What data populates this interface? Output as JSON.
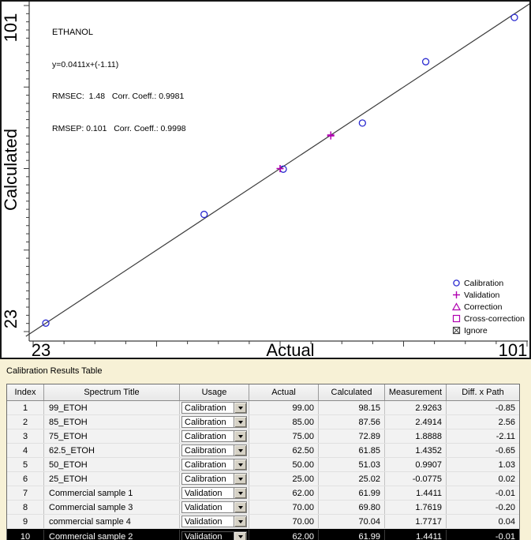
{
  "colors": {
    "panel_bg": "#f7f1d6",
    "plot_bg": "#ffffff",
    "axis": "#3c3c3c",
    "calibration": "#2a2ad0",
    "validation": "#b000b0",
    "ignore": "#444444",
    "selection_bg": "#000000",
    "selection_text": "#ffffff"
  },
  "plot": {
    "title": "ETHANOL",
    "equation": "y=0.0411x+(-1.11)",
    "stats_line1": "RMSEC:  1.48   Corr. Coeff.: 0.9981",
    "stats_line2": "RMSEP: 0.101   Corr. Coeff.: 0.9998",
    "x_axis_label": "Actual",
    "y_axis_label": "Calculated",
    "x_min_label": "23",
    "x_max_label": "101",
    "y_min_label": "23",
    "y_max_label": "101",
    "legend": [
      {
        "marker": "circle",
        "label": "Calibration",
        "color": "#2a2ad0"
      },
      {
        "marker": "plus",
        "label": "Validation",
        "color": "#b000b0"
      },
      {
        "marker": "triangle",
        "label": "Correction",
        "color": "#b000b0"
      },
      {
        "marker": "square",
        "label": "Cross-correction",
        "color": "#b000b0"
      },
      {
        "marker": "crossed-square",
        "label": "Ignore",
        "color": "#444444"
      }
    ]
  },
  "chart_data": {
    "type": "scatter",
    "title": "ETHANOL",
    "xlabel": "Actual",
    "ylabel": "Calculated",
    "xlim": [
      23,
      101
    ],
    "ylim": [
      23,
      101
    ],
    "grid": false,
    "legend_position": "lower right",
    "series": [
      {
        "name": "Calibration",
        "marker": "circle",
        "color": "#2a2ad0",
        "points": [
          [
            99,
            98.15
          ],
          [
            85,
            87.56
          ],
          [
            75,
            72.89
          ],
          [
            62.5,
            61.85
          ],
          [
            50,
            51.03
          ],
          [
            25,
            25.02
          ]
        ]
      },
      {
        "name": "Validation",
        "marker": "plus",
        "color": "#b000b0",
        "points": [
          [
            62,
            61.99
          ],
          [
            70,
            69.8
          ],
          [
            70,
            70.04
          ],
          [
            62,
            61.99
          ]
        ]
      }
    ],
    "fit_line": {
      "x": [
        23,
        101
      ],
      "y": [
        23,
        101
      ]
    },
    "annotations": [
      "ETHANOL",
      "y=0.0411x+(-1.11)",
      "RMSEC: 1.48 Corr. Coeff.: 0.9981",
      "RMSEP: 0.101 Corr. Coeff.: 0.9998"
    ]
  },
  "table": {
    "label": "Calibration Results Table",
    "columns": [
      "Index",
      "Spectrum Title",
      "Usage",
      "Actual",
      "Calculated",
      "Measurement",
      "Diff. x Path"
    ],
    "selected_index": "10",
    "rows": [
      {
        "index": "1",
        "title": "99_ETOH",
        "usage": "Calibration",
        "actual": "99.00",
        "calculated": "98.15",
        "measurement": "2.9263",
        "diff": "-0.85"
      },
      {
        "index": "2",
        "title": "85_ETOH",
        "usage": "Calibration",
        "actual": "85.00",
        "calculated": "87.56",
        "measurement": "2.4914",
        "diff": "2.56"
      },
      {
        "index": "3",
        "title": "75_ETOH",
        "usage": "Calibration",
        "actual": "75.00",
        "calculated": "72.89",
        "measurement": "1.8888",
        "diff": "-2.11"
      },
      {
        "index": "4",
        "title": "62.5_ETOH",
        "usage": "Calibration",
        "actual": "62.50",
        "calculated": "61.85",
        "measurement": "1.4352",
        "diff": "-0.65"
      },
      {
        "index": "5",
        "title": "50_ETOH",
        "usage": "Calibration",
        "actual": "50.00",
        "calculated": "51.03",
        "measurement": "0.9907",
        "diff": "1.03"
      },
      {
        "index": "6",
        "title": "25_ETOH",
        "usage": "Calibration",
        "actual": "25.00",
        "calculated": "25.02",
        "measurement": "-0.0775",
        "diff": "0.02"
      },
      {
        "index": "7",
        "title": "Commercial sample 1",
        "usage": "Validation",
        "actual": "62.00",
        "calculated": "61.99",
        "measurement": "1.4411",
        "diff": "-0.01"
      },
      {
        "index": "8",
        "title": "Commercial sample 3",
        "usage": "Validation",
        "actual": "70.00",
        "calculated": "69.80",
        "measurement": "1.7619",
        "diff": "-0.20"
      },
      {
        "index": "9",
        "title": "commercial sample 4",
        "usage": "Validation",
        "actual": "70.00",
        "calculated": "70.04",
        "measurement": "1.7717",
        "diff": "0.04"
      },
      {
        "index": "10",
        "title": "Commercial sample 2",
        "usage": "Validation",
        "actual": "62.00",
        "calculated": "61.99",
        "measurement": "1.4411",
        "diff": "-0.01",
        "selected": true
      }
    ]
  }
}
